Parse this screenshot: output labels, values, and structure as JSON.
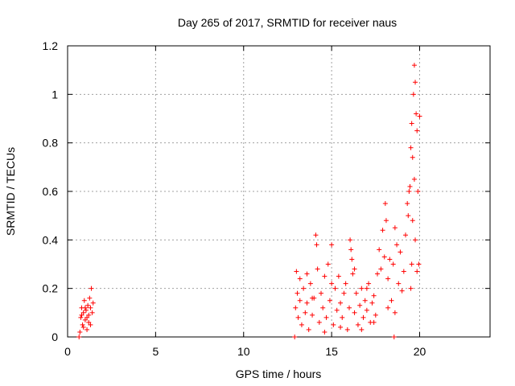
{
  "chart_data": {
    "type": "scatter",
    "title": "Day 265 of 2017, SRMTID for receiver naus",
    "xlabel": "GPS time / hours",
    "ylabel": "SRMTID / TECUs",
    "xlim": [
      0,
      24
    ],
    "ylim": [
      0,
      1.2
    ],
    "xticks": [
      0,
      5,
      10,
      15,
      20
    ],
    "yticks": [
      0,
      0.2,
      0.4,
      0.6,
      0.8,
      1,
      1.2
    ],
    "xtick_labels": [
      "0",
      "5",
      "10",
      "15",
      "20"
    ],
    "ytick_labels": [
      "0",
      "0.2",
      "0.4",
      "0.6",
      "0.8",
      "1",
      "1.2"
    ],
    "grid": true,
    "marker": "+",
    "marker_color": "#ff0000",
    "series": [
      {
        "name": "SRMTID",
        "points": [
          [
            0.65,
            0.0
          ],
          [
            12.9,
            0.0
          ],
          [
            18.55,
            0.0
          ],
          [
            0.7,
            0.02
          ],
          [
            0.75,
            0.08
          ],
          [
            0.8,
            0.12
          ],
          [
            0.85,
            0.05
          ],
          [
            0.9,
            0.1
          ],
          [
            0.95,
            0.15
          ],
          [
            1.0,
            0.07
          ],
          [
            1.05,
            0.11
          ],
          [
            1.1,
            0.03
          ],
          [
            1.15,
            0.13
          ],
          [
            1.2,
            0.09
          ],
          [
            1.25,
            0.16
          ],
          [
            1.3,
            0.12
          ],
          [
            1.35,
            0.2
          ],
          [
            1.4,
            0.1
          ],
          [
            1.45,
            0.14
          ],
          [
            0.9,
            0.04
          ],
          [
            1.1,
            0.08
          ],
          [
            1.2,
            0.06
          ],
          [
            1.3,
            0.05
          ],
          [
            0.8,
            0.09
          ],
          [
            1.0,
            0.12
          ],
          [
            12.95,
            0.12
          ],
          [
            13.0,
            0.27
          ],
          [
            13.05,
            0.18
          ],
          [
            13.1,
            0.08
          ],
          [
            13.2,
            0.15
          ],
          [
            13.3,
            0.05
          ],
          [
            13.4,
            0.2
          ],
          [
            13.5,
            0.1
          ],
          [
            13.6,
            0.14
          ],
          [
            13.7,
            0.03
          ],
          [
            13.8,
            0.22
          ],
          [
            13.9,
            0.09
          ],
          [
            14.0,
            0.16
          ],
          [
            14.1,
            0.42
          ],
          [
            14.15,
            0.38
          ],
          [
            14.2,
            0.28
          ],
          [
            14.3,
            0.06
          ],
          [
            14.4,
            0.18
          ],
          [
            14.5,
            0.12
          ],
          [
            14.6,
            0.25
          ],
          [
            14.7,
            0.08
          ],
          [
            14.8,
            0.3
          ],
          [
            14.9,
            0.15
          ],
          [
            15.0,
            0.38
          ],
          [
            15.1,
            0.05
          ],
          [
            15.2,
            0.2
          ],
          [
            15.3,
            0.11
          ],
          [
            15.4,
            0.25
          ],
          [
            15.5,
            0.14
          ],
          [
            15.6,
            0.08
          ],
          [
            15.7,
            0.18
          ],
          [
            15.8,
            0.22
          ],
          [
            15.9,
            0.03
          ],
          [
            16.0,
            0.12
          ],
          [
            16.05,
            0.4
          ],
          [
            16.1,
            0.36
          ],
          [
            16.15,
            0.32
          ],
          [
            16.2,
            0.26
          ],
          [
            16.3,
            0.1
          ],
          [
            16.4,
            0.18
          ],
          [
            16.5,
            0.05
          ],
          [
            16.6,
            0.13
          ],
          [
            16.7,
            0.2
          ],
          [
            16.8,
            0.08
          ],
          [
            16.9,
            0.15
          ],
          [
            17.0,
            0.11
          ],
          [
            17.1,
            0.22
          ],
          [
            17.2,
            0.06
          ],
          [
            17.3,
            0.14
          ],
          [
            17.4,
            0.17
          ],
          [
            17.5,
            0.09
          ],
          [
            17.6,
            0.26
          ],
          [
            17.7,
            0.36
          ],
          [
            17.8,
            0.28
          ],
          [
            17.9,
            0.44
          ],
          [
            18.0,
            0.33
          ],
          [
            18.05,
            0.55
          ],
          [
            18.1,
            0.48
          ],
          [
            18.2,
            0.24
          ],
          [
            18.3,
            0.32
          ],
          [
            18.4,
            0.15
          ],
          [
            18.5,
            0.3
          ],
          [
            18.6,
            0.45
          ],
          [
            18.7,
            0.38
          ],
          [
            18.8,
            0.22
          ],
          [
            18.9,
            0.35
          ],
          [
            19.0,
            0.19
          ],
          [
            19.1,
            0.27
          ],
          [
            19.2,
            0.42
          ],
          [
            19.3,
            0.55
          ],
          [
            19.35,
            0.5
          ],
          [
            19.4,
            0.6
          ],
          [
            19.45,
            0.62
          ],
          [
            19.5,
            0.78
          ],
          [
            19.55,
            0.88
          ],
          [
            19.6,
            0.74
          ],
          [
            19.65,
            1.0
          ],
          [
            19.7,
            1.12
          ],
          [
            19.75,
            1.05
          ],
          [
            19.8,
            0.92
          ],
          [
            19.85,
            0.85
          ],
          [
            19.9,
            0.6
          ],
          [
            19.95,
            0.3
          ],
          [
            20.0,
            0.91
          ],
          [
            19.55,
            0.3
          ],
          [
            19.6,
            0.48
          ],
          [
            19.7,
            0.65
          ],
          [
            19.75,
            0.4
          ],
          [
            19.85,
            0.27
          ],
          [
            19.5,
            0.2
          ],
          [
            13.2,
            0.24
          ],
          [
            13.6,
            0.26
          ],
          [
            14.6,
            0.02
          ],
          [
            15.5,
            0.04
          ],
          [
            16.7,
            0.03
          ],
          [
            17.4,
            0.06
          ],
          [
            18.2,
            0.12
          ],
          [
            13.9,
            0.16
          ],
          [
            15.0,
            0.22
          ],
          [
            16.3,
            0.28
          ],
          [
            17.0,
            0.2
          ],
          [
            18.6,
            0.1
          ]
        ]
      }
    ]
  }
}
